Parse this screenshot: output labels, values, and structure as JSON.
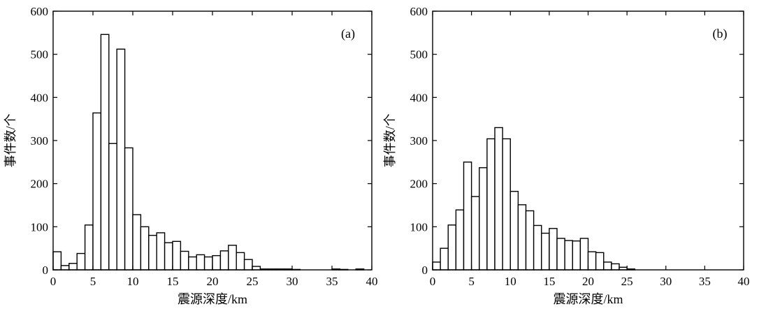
{
  "chart_data": [
    {
      "type": "bar",
      "panel_label": "(a)",
      "xlabel": "震源深度/km",
      "ylabel": "事件数/个",
      "xlim": [
        0,
        40
      ],
      "ylim": [
        0,
        600
      ],
      "xticks": [
        0,
        5,
        10,
        15,
        20,
        25,
        30,
        35,
        40
      ],
      "yticks": [
        0,
        100,
        200,
        300,
        400,
        500,
        600
      ],
      "bin_width": 1,
      "bin_start": [
        0,
        1,
        2,
        3,
        4,
        5,
        6,
        7,
        8,
        9,
        10,
        11,
        12,
        13,
        14,
        15,
        16,
        17,
        18,
        19,
        20,
        21,
        22,
        23,
        24,
        25,
        26,
        27,
        28,
        29,
        30,
        31,
        32,
        33,
        34,
        35,
        36,
        37,
        38,
        39
      ],
      "values": [
        42,
        10,
        15,
        38,
        104,
        364,
        546,
        293,
        512,
        283,
        128,
        100,
        80,
        86,
        63,
        66,
        43,
        30,
        35,
        30,
        33,
        44,
        57,
        40,
        24,
        8,
        2,
        2,
        2,
        2,
        1,
        0,
        0,
        0,
        0,
        2,
        1,
        0,
        2,
        0
      ]
    },
    {
      "type": "bar",
      "panel_label": "(b)",
      "xlabel": "震源深度/km",
      "ylabel": "事件数/个",
      "xlim": [
        0,
        40
      ],
      "ylim": [
        0,
        600
      ],
      "xticks": [
        0,
        5,
        10,
        15,
        20,
        25,
        30,
        35,
        40
      ],
      "yticks": [
        0,
        100,
        200,
        300,
        400,
        500,
        600
      ],
      "bin_width": 1,
      "bin_start": [
        0,
        1,
        2,
        3,
        4,
        5,
        6,
        7,
        8,
        9,
        10,
        11,
        12,
        13,
        14,
        15,
        16,
        17,
        18,
        19,
        20,
        21,
        22,
        23,
        24,
        25,
        26,
        27,
        28,
        29,
        30,
        31,
        32,
        33,
        34,
        35,
        36,
        37,
        38,
        39
      ],
      "values": [
        18,
        50,
        104,
        139,
        250,
        170,
        237,
        304,
        330,
        304,
        182,
        151,
        137,
        103,
        85,
        96,
        73,
        68,
        67,
        73,
        42,
        40,
        18,
        14,
        6,
        2,
        0,
        0,
        0,
        0,
        0,
        0,
        0,
        0,
        0,
        0,
        0,
        0,
        0,
        0
      ]
    }
  ]
}
